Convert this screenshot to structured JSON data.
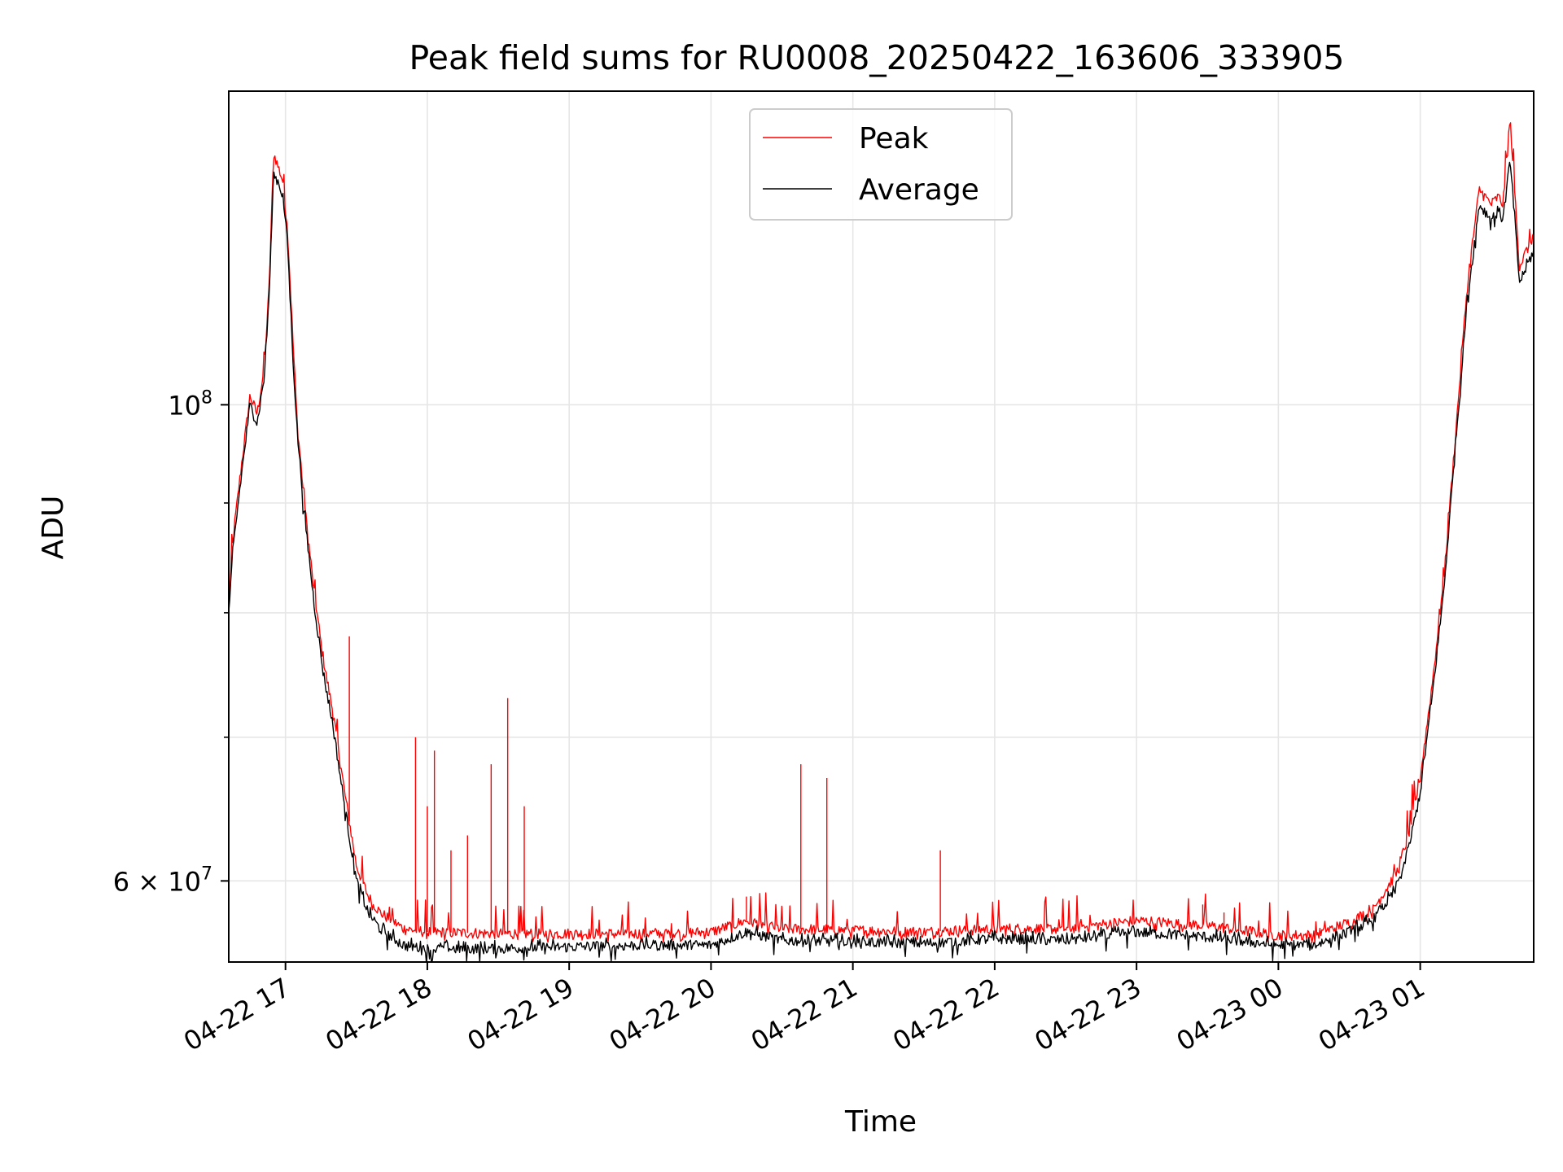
{
  "chart_data": {
    "type": "line",
    "title": "Peak field sums for RU0008_20250422_163606_333905",
    "xlabel": "Time",
    "ylabel": "ADU",
    "yscale": "log",
    "grid": true,
    "legend": {
      "placement": "top-center",
      "entries": [
        "Peak",
        "Average"
      ]
    },
    "xlim": [
      "2025-04-22 16:36",
      "2025-04-23 01:48"
    ],
    "ylim": [
      55000000,
      140000000
    ],
    "x_ticks": [
      "04-22 17",
      "04-22 18",
      "04-22 19",
      "04-22 20",
      "04-22 21",
      "04-22 22",
      "04-22 23",
      "04-23 00",
      "04-23 01"
    ],
    "y_ticks": [
      {
        "value": 60000000,
        "base": "6 × 10",
        "exp": "7"
      },
      {
        "value": 100000000,
        "base": "10",
        "exp": "8"
      }
    ],
    "series": [
      {
        "name": "Average",
        "color": "#000000",
        "x": [
          "2025-04-22 16:36",
          "2025-04-22 16:38",
          "2025-04-22 16:41",
          "2025-04-22 16:45",
          "2025-04-22 16:48",
          "2025-04-22 16:51",
          "2025-04-22 16:53",
          "2025-04-22 16:55",
          "2025-04-22 16:57",
          "2025-04-22 16:59",
          "2025-04-22 17:01",
          "2025-04-22 17:03",
          "2025-04-22 17:05",
          "2025-04-22 17:08",
          "2025-04-22 17:12",
          "2025-04-22 17:16",
          "2025-04-22 17:20",
          "2025-04-22 17:25",
          "2025-04-22 17:30",
          "2025-04-22 17:35",
          "2025-04-22 17:40",
          "2025-04-22 17:45",
          "2025-04-22 17:50",
          "2025-04-22 18:00",
          "2025-04-22 18:30",
          "2025-04-22 19:00",
          "2025-04-22 19:30",
          "2025-04-22 20:00",
          "2025-04-22 20:15",
          "2025-04-22 20:30",
          "2025-04-22 21:00",
          "2025-04-22 21:30",
          "2025-04-22 22:00",
          "2025-04-22 22:30",
          "2025-04-22 23:00",
          "2025-04-22 23:30",
          "2025-04-23 00:00",
          "2025-04-23 00:15",
          "2025-04-23 00:30",
          "2025-04-23 00:40",
          "2025-04-23 00:50",
          "2025-04-23 00:55",
          "2025-04-23 01:00",
          "2025-04-23 01:05",
          "2025-04-23 01:10",
          "2025-04-23 01:15",
          "2025-04-23 01:20",
          "2025-04-23 01:25",
          "2025-04-23 01:30",
          "2025-04-23 01:33",
          "2025-04-23 01:35",
          "2025-04-23 01:38",
          "2025-04-23 01:42",
          "2025-04-23 01:48"
        ],
        "values": [
          80000000,
          86000000,
          92000000,
          100000000,
          98000000,
          103000000,
          112000000,
          128000000,
          127000000,
          125000000,
          118000000,
          106000000,
          97000000,
          89000000,
          81000000,
          75000000,
          71000000,
          65000000,
          60000000,
          58000000,
          57000000,
          56500000,
          56000000,
          55800000,
          55800000,
          55900000,
          56000000,
          56000000,
          56800000,
          56300000,
          56200000,
          56100000,
          56400000,
          56300000,
          56800000,
          56500000,
          56000000,
          56000000,
          56800000,
          57500000,
          59500000,
          62000000,
          66000000,
          73000000,
          82000000,
          96000000,
          112000000,
          124000000,
          122000000,
          123000000,
          122000000,
          130000000,
          114000000,
          118000000
        ]
      },
      {
        "name": "Peak",
        "color": "#ff0000",
        "x": [
          "2025-04-22 16:36",
          "2025-04-22 16:38",
          "2025-04-22 16:41",
          "2025-04-22 16:45",
          "2025-04-22 16:48",
          "2025-04-22 16:51",
          "2025-04-22 16:53",
          "2025-04-22 16:55",
          "2025-04-22 16:57",
          "2025-04-22 16:59",
          "2025-04-22 17:01",
          "2025-04-22 17:03",
          "2025-04-22 17:05",
          "2025-04-22 17:08",
          "2025-04-22 17:12",
          "2025-04-22 17:16",
          "2025-04-22 17:20",
          "2025-04-22 17:25",
          "2025-04-22 17:30",
          "2025-04-22 17:35",
          "2025-04-22 17:40",
          "2025-04-22 17:45",
          "2025-04-22 17:50",
          "2025-04-22 18:00",
          "2025-04-22 18:30",
          "2025-04-22 19:00",
          "2025-04-22 19:30",
          "2025-04-22 20:00",
          "2025-04-22 20:15",
          "2025-04-22 20:30",
          "2025-04-22 21:00",
          "2025-04-22 21:30",
          "2025-04-22 22:00",
          "2025-04-22 22:30",
          "2025-04-22 23:00",
          "2025-04-22 23:30",
          "2025-04-23 00:00",
          "2025-04-23 00:15",
          "2025-04-23 00:30",
          "2025-04-23 00:40",
          "2025-04-23 00:50",
          "2025-04-23 00:55",
          "2025-04-23 01:00",
          "2025-04-23 01:05",
          "2025-04-23 01:10",
          "2025-04-23 01:15",
          "2025-04-23 01:20",
          "2025-04-23 01:25",
          "2025-04-23 01:30",
          "2025-04-23 01:33",
          "2025-04-23 01:35",
          "2025-04-23 01:38",
          "2025-04-23 01:42",
          "2025-04-23 01:48"
        ],
        "values": [
          81000000,
          87000000,
          93000000,
          101000000,
          99000000,
          104000000,
          113000000,
          131000000,
          129000000,
          127000000,
          120000000,
          108000000,
          98000000,
          90000000,
          82000000,
          76000000,
          72000000,
          66000000,
          61000000,
          59000000,
          58000000,
          57500000,
          57000000,
          56800000,
          56700000,
          56700000,
          56700000,
          56800000,
          57500000,
          57000000,
          56900000,
          56800000,
          57000000,
          57000000,
          57500000,
          57200000,
          56600000,
          56600000,
          57400000,
          58200000,
          60500000,
          63000000,
          67000000,
          74000000,
          83000000,
          97000000,
          114000000,
          126000000,
          124000000,
          125000000,
          124000000,
          136000000,
          116000000,
          120000000
        ]
      }
    ],
    "spikes": [
      {
        "x": "2025-04-22 17:27",
        "value": 78000000
      },
      {
        "x": "2025-04-22 17:55",
        "value": 70000000
      },
      {
        "x": "2025-04-22 18:00",
        "value": 65000000
      },
      {
        "x": "2025-04-22 18:03",
        "value": 69000000
      },
      {
        "x": "2025-04-22 18:10",
        "value": 62000000
      },
      {
        "x": "2025-04-22 18:17",
        "value": 63000000
      },
      {
        "x": "2025-04-22 18:27",
        "value": 68000000
      },
      {
        "x": "2025-04-22 18:34",
        "value": 73000000
      },
      {
        "x": "2025-04-22 18:41",
        "value": 65000000
      },
      {
        "x": "2025-04-22 20:15",
        "value": 59000000
      },
      {
        "x": "2025-04-22 20:38",
        "value": 68000000
      },
      {
        "x": "2025-04-22 20:49",
        "value": 67000000
      },
      {
        "x": "2025-04-22 21:37",
        "value": 62000000
      },
      {
        "x": "2025-04-22 23:28",
        "value": 58500000
      },
      {
        "x": "2025-04-22 23:37",
        "value": 58000000
      }
    ]
  }
}
